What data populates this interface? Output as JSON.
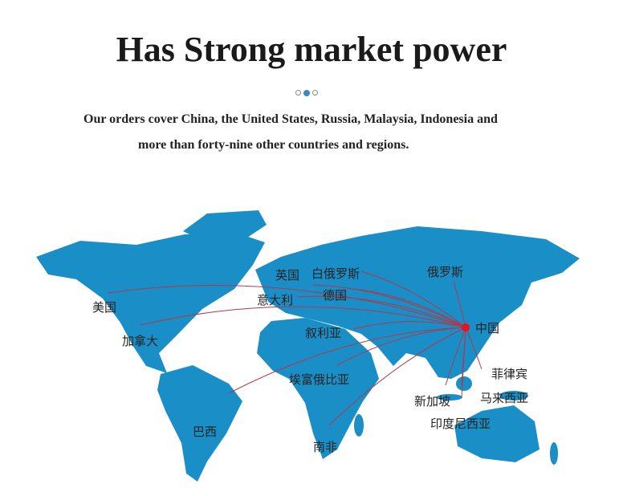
{
  "title": "Has Strong market power",
  "carousel": {
    "dots": 3,
    "active_index": 1,
    "active_color": "#3a88c8"
  },
  "description": {
    "line1": "Our orders cover China, the United States, Russia, Malaysia, Indonesia and",
    "line2": "more than forty-nine other countries and regions."
  },
  "map": {
    "land_color": "#1a8ec6",
    "route_color": "#b0394a",
    "hub_color": "#e8141c",
    "hub": {
      "label": "中国"
    },
    "destinations": [
      {
        "label": "美国"
      },
      {
        "label": "加拿大"
      },
      {
        "label": "英国"
      },
      {
        "label": "白俄罗斯"
      },
      {
        "label": "德国"
      },
      {
        "label": "意大利"
      },
      {
        "label": "俄罗斯"
      },
      {
        "label": "叙利亚"
      },
      {
        "label": "埃富俄比亚"
      },
      {
        "label": "菲律宾"
      },
      {
        "label": "马来西亚"
      },
      {
        "label": "新加坡"
      },
      {
        "label": "印度尼西亚"
      },
      {
        "label": "巴西"
      },
      {
        "label": "南非"
      }
    ]
  }
}
